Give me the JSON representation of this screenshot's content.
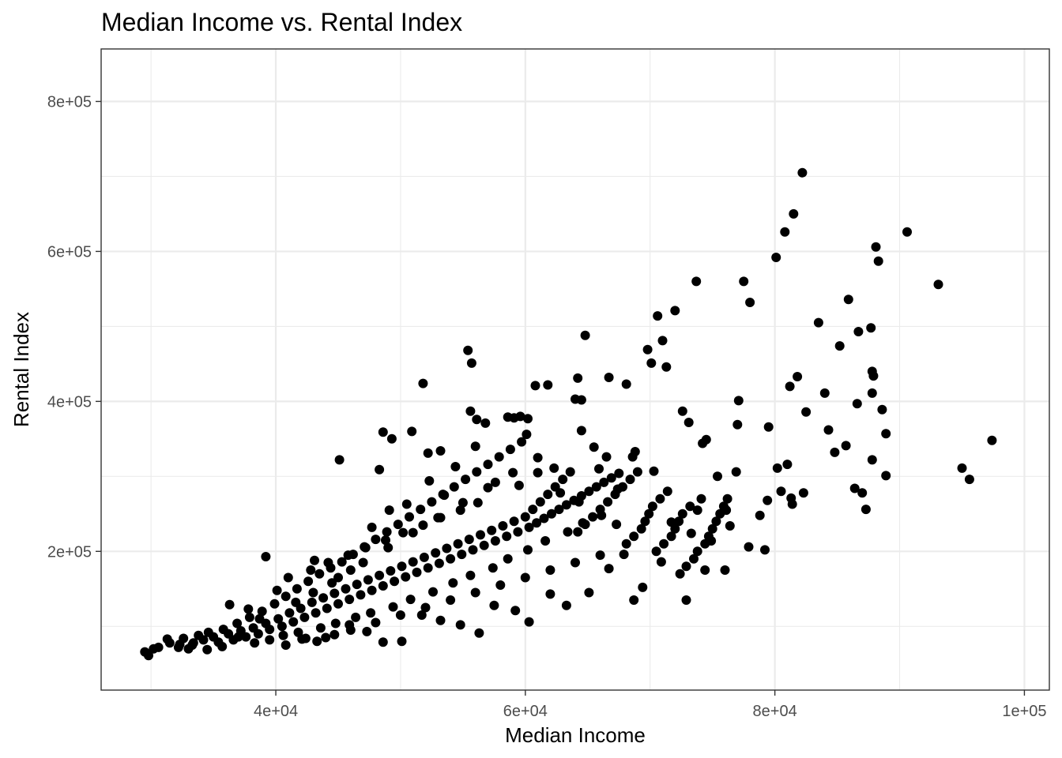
{
  "chart_data": {
    "type": "scatter",
    "title": "Median Income vs. Rental Index",
    "xlabel": "Median Income",
    "ylabel": "Rental Index",
    "xlim": [
      26000,
      102000
    ],
    "ylim": [
      15000,
      870000
    ],
    "x_ticks": [
      40000,
      60000,
      80000,
      100000
    ],
    "x_tick_labels": [
      "4e+04",
      "6e+04",
      "8e+04",
      "1e+05"
    ],
    "y_ticks": [
      200000,
      400000,
      600000,
      800000
    ],
    "y_tick_labels": [
      "2e+05",
      "4e+05",
      "6e+05",
      "8e+05"
    ],
    "grid": true,
    "legend": "none",
    "point_color": "#000000",
    "points": [
      [
        29500,
        66000
      ],
      [
        29800,
        61000
      ],
      [
        30200,
        70000
      ],
      [
        30600,
        72000
      ],
      [
        31500,
        78000
      ],
      [
        32300,
        76000
      ],
      [
        32600,
        84000
      ],
      [
        33000,
        70000
      ],
      [
        33400,
        78000
      ],
      [
        33800,
        88000
      ],
      [
        34200,
        82000
      ],
      [
        34600,
        92000
      ],
      [
        35000,
        86000
      ],
      [
        35400,
        79000
      ],
      [
        35800,
        96000
      ],
      [
        36200,
        90000
      ],
      [
        36600,
        82000
      ],
      [
        36900,
        104000
      ],
      [
        37200,
        94000
      ],
      [
        37600,
        86000
      ],
      [
        37900,
        112000
      ],
      [
        38200,
        98000
      ],
      [
        38600,
        90000
      ],
      [
        38900,
        120000
      ],
      [
        39200,
        104000
      ],
      [
        39500,
        96000
      ],
      [
        39900,
        130000
      ],
      [
        40200,
        110000
      ],
      [
        40500,
        100000
      ],
      [
        40800,
        140000
      ],
      [
        41100,
        118000
      ],
      [
        41400,
        106000
      ],
      [
        41700,
        150000
      ],
      [
        42000,
        124000
      ],
      [
        42300,
        112000
      ],
      [
        42600,
        160000
      ],
      [
        42900,
        132000
      ],
      [
        43200,
        118000
      ],
      [
        43500,
        170000
      ],
      [
        43800,
        138000
      ],
      [
        44100,
        124000
      ],
      [
        44400,
        178000
      ],
      [
        44700,
        144000
      ],
      [
        45000,
        130000
      ],
      [
        45300,
        186000
      ],
      [
        45600,
        150000
      ],
      [
        45900,
        136000
      ],
      [
        46200,
        196000
      ],
      [
        46500,
        156000
      ],
      [
        46800,
        142000
      ],
      [
        47100,
        206000
      ],
      [
        47400,
        162000
      ],
      [
        47700,
        148000
      ],
      [
        48000,
        216000
      ],
      [
        48300,
        168000
      ],
      [
        48600,
        154000
      ],
      [
        48900,
        226000
      ],
      [
        49200,
        174000
      ],
      [
        49500,
        160000
      ],
      [
        49800,
        236000
      ],
      [
        50100,
        180000
      ],
      [
        50400,
        166000
      ],
      [
        50700,
        246000
      ],
      [
        51000,
        186000
      ],
      [
        51300,
        172000
      ],
      [
        51600,
        256000
      ],
      [
        51900,
        192000
      ],
      [
        52200,
        178000
      ],
      [
        52500,
        266000
      ],
      [
        52800,
        198000
      ],
      [
        53100,
        184000
      ],
      [
        53400,
        276000
      ],
      [
        53700,
        204000
      ],
      [
        54000,
        190000
      ],
      [
        54300,
        286000
      ],
      [
        54600,
        210000
      ],
      [
        54900,
        196000
      ],
      [
        55200,
        296000
      ],
      [
        55500,
        216000
      ],
      [
        55800,
        202000
      ],
      [
        56100,
        306000
      ],
      [
        56400,
        222000
      ],
      [
        56700,
        208000
      ],
      [
        57000,
        316000
      ],
      [
        57300,
        228000
      ],
      [
        57600,
        214000
      ],
      [
        57900,
        326000
      ],
      [
        58200,
        234000
      ],
      [
        58500,
        220000
      ],
      [
        58800,
        336000
      ],
      [
        59100,
        240000
      ],
      [
        59400,
        226000
      ],
      [
        59700,
        346000
      ],
      [
        60000,
        246000
      ],
      [
        60300,
        232000
      ],
      [
        60600,
        256000
      ],
      [
        60900,
        238000
      ],
      [
        61200,
        266000
      ],
      [
        61500,
        244000
      ],
      [
        61800,
        276000
      ],
      [
        62100,
        250000
      ],
      [
        62400,
        286000
      ],
      [
        62700,
        256000
      ],
      [
        63000,
        296000
      ],
      [
        63300,
        262000
      ],
      [
        63600,
        306000
      ],
      [
        63900,
        268000
      ],
      [
        64200,
        226000
      ],
      [
        64500,
        274000
      ],
      [
        64800,
        236000
      ],
      [
        65100,
        280000
      ],
      [
        65400,
        246000
      ],
      [
        65700,
        286000
      ],
      [
        66000,
        256000
      ],
      [
        66300,
        292000
      ],
      [
        66600,
        266000
      ],
      [
        66900,
        298000
      ],
      [
        67200,
        276000
      ],
      [
        67500,
        304000
      ],
      [
        67800,
        286000
      ],
      [
        68100,
        210000
      ],
      [
        68400,
        296000
      ],
      [
        68700,
        220000
      ],
      [
        69000,
        306000
      ],
      [
        69300,
        230000
      ],
      [
        69600,
        240000
      ],
      [
        69900,
        250000
      ],
      [
        70200,
        260000
      ],
      [
        70500,
        200000
      ],
      [
        70800,
        270000
      ],
      [
        71100,
        210000
      ],
      [
        71400,
        280000
      ],
      [
        71700,
        220000
      ],
      [
        72000,
        230000
      ],
      [
        72300,
        240000
      ],
      [
        72600,
        250000
      ],
      [
        72900,
        180000
      ],
      [
        73200,
        260000
      ],
      [
        73500,
        190000
      ],
      [
        73800,
        200000
      ],
      [
        74100,
        270000
      ],
      [
        74400,
        210000
      ],
      [
        74700,
        220000
      ],
      [
        75000,
        230000
      ],
      [
        75300,
        240000
      ],
      [
        75600,
        250000
      ],
      [
        75900,
        260000
      ],
      [
        76200,
        270000
      ],
      [
        44000,
        85000
      ],
      [
        46000,
        95000
      ],
      [
        48000,
        105000
      ],
      [
        50000,
        115000
      ],
      [
        52000,
        125000
      ],
      [
        54000,
        135000
      ],
      [
        56000,
        145000
      ],
      [
        58000,
        155000
      ],
      [
        60000,
        165000
      ],
      [
        62000,
        175000
      ],
      [
        64000,
        185000
      ],
      [
        66000,
        195000
      ],
      [
        43000,
        145000
      ],
      [
        45000,
        165000
      ],
      [
        47000,
        185000
      ],
      [
        49000,
        205000
      ],
      [
        51000,
        225000
      ],
      [
        53000,
        245000
      ],
      [
        55000,
        265000
      ],
      [
        57000,
        285000
      ],
      [
        59000,
        305000
      ],
      [
        61000,
        325000
      ],
      [
        40600,
        88000
      ],
      [
        41800,
        92000
      ],
      [
        42400,
        84000
      ],
      [
        43600,
        98000
      ],
      [
        44800,
        104000
      ],
      [
        46400,
        112000
      ],
      [
        47600,
        118000
      ],
      [
        49400,
        126000
      ],
      [
        50800,
        136000
      ],
      [
        52600,
        146000
      ],
      [
        54200,
        158000
      ],
      [
        55600,
        168000
      ],
      [
        57400,
        178000
      ],
      [
        58600,
        190000
      ],
      [
        60200,
        202000
      ],
      [
        61600,
        214000
      ],
      [
        63400,
        226000
      ],
      [
        64600,
        238000
      ],
      [
        39200,
        193000
      ],
      [
        41000,
        165000
      ],
      [
        42800,
        175000
      ],
      [
        44200,
        185000
      ],
      [
        45800,
        195000
      ],
      [
        47200,
        205000
      ],
      [
        48800,
        215000
      ],
      [
        50200,
        225000
      ],
      [
        51800,
        235000
      ],
      [
        53200,
        245000
      ],
      [
        54800,
        255000
      ],
      [
        56200,
        265000
      ],
      [
        45100,
        322000
      ],
      [
        48300,
        309000
      ],
      [
        48600,
        359000
      ],
      [
        49300,
        350000
      ],
      [
        50900,
        360000
      ],
      [
        51800,
        424000
      ],
      [
        52200,
        331000
      ],
      [
        53200,
        334000
      ],
      [
        55400,
        468000
      ],
      [
        55700,
        451000
      ],
      [
        55600,
        387000
      ],
      [
        56100,
        376000
      ],
      [
        56800,
        371000
      ],
      [
        58600,
        379000
      ],
      [
        59100,
        378000
      ],
      [
        59600,
        380000
      ],
      [
        60200,
        377000
      ],
      [
        60100,
        356000
      ],
      [
        60800,
        421000
      ],
      [
        61800,
        422000
      ],
      [
        62300,
        311000
      ],
      [
        64000,
        403000
      ],
      [
        64200,
        431000
      ],
      [
        64500,
        402000
      ],
      [
        64500,
        361000
      ],
      [
        64800,
        488000
      ],
      [
        65500,
        339000
      ],
      [
        66500,
        326000
      ],
      [
        66700,
        432000
      ],
      [
        68100,
        423000
      ],
      [
        68800,
        333000
      ],
      [
        69800,
        469000
      ],
      [
        70100,
        451000
      ],
      [
        70600,
        514000
      ],
      [
        71000,
        481000
      ],
      [
        71300,
        446000
      ],
      [
        72000,
        521000
      ],
      [
        72600,
        387000
      ],
      [
        73100,
        372000
      ],
      [
        73700,
        560000
      ],
      [
        74200,
        344000
      ],
      [
        74500,
        349000
      ],
      [
        77500,
        560000
      ],
      [
        78000,
        532000
      ],
      [
        77100,
        401000
      ],
      [
        77000,
        369000
      ],
      [
        76900,
        306000
      ],
      [
        79500,
        366000
      ],
      [
        80100,
        592000
      ],
      [
        80800,
        626000
      ],
      [
        81500,
        650000
      ],
      [
        82200,
        705000
      ],
      [
        80200,
        311000
      ],
      [
        81000,
        316000
      ],
      [
        81400,
        263000
      ],
      [
        81200,
        420000
      ],
      [
        81800,
        433000
      ],
      [
        82500,
        386000
      ],
      [
        83500,
        505000
      ],
      [
        84000,
        411000
      ],
      [
        84300,
        362000
      ],
      [
        84800,
        332000
      ],
      [
        85200,
        474000
      ],
      [
        85700,
        341000
      ],
      [
        85900,
        536000
      ],
      [
        86400,
        284000
      ],
      [
        86600,
        397000
      ],
      [
        86700,
        493000
      ],
      [
        87000,
        278000
      ],
      [
        87300,
        256000
      ],
      [
        87700,
        498000
      ],
      [
        87800,
        440000
      ],
      [
        87900,
        434000
      ],
      [
        87800,
        411000
      ],
      [
        87800,
        322000
      ],
      [
        88100,
        606000
      ],
      [
        88300,
        587000
      ],
      [
        88600,
        389000
      ],
      [
        88900,
        357000
      ],
      [
        88900,
        301000
      ],
      [
        90600,
        626000
      ],
      [
        93100,
        556000
      ],
      [
        95000,
        311000
      ],
      [
        95600,
        296000
      ],
      [
        97400,
        348000
      ],
      [
        72900,
        135000
      ],
      [
        74400,
        175000
      ],
      [
        76000,
        175000
      ],
      [
        79200,
        202000
      ],
      [
        77900,
        206000
      ],
      [
        79400,
        268000
      ],
      [
        80500,
        280000
      ],
      [
        81300,
        271000
      ],
      [
        82300,
        278000
      ],
      [
        78800,
        248000
      ],
      [
        76400,
        234000
      ],
      [
        73800,
        255000
      ],
      [
        75400,
        300000
      ],
      [
        72400,
        170000
      ],
      [
        70900,
        186000
      ],
      [
        69400,
        152000
      ],
      [
        68700,
        135000
      ],
      [
        67900,
        196000
      ],
      [
        66700,
        177000
      ],
      [
        65100,
        145000
      ],
      [
        63300,
        128000
      ],
      [
        62000,
        143000
      ],
      [
        60300,
        106000
      ],
      [
        59200,
        121000
      ],
      [
        57500,
        128000
      ],
      [
        56300,
        91000
      ],
      [
        54800,
        102000
      ],
      [
        53200,
        108000
      ],
      [
        51700,
        115000
      ],
      [
        50100,
        80000
      ],
      [
        48600,
        79000
      ],
      [
        47300,
        93000
      ],
      [
        45900,
        102000
      ],
      [
        44700,
        89000
      ],
      [
        43300,
        80000
      ],
      [
        42100,
        83000
      ],
      [
        40800,
        75000
      ],
      [
        39500,
        82000
      ],
      [
        38300,
        78000
      ],
      [
        37000,
        86000
      ],
      [
        35700,
        73000
      ],
      [
        34500,
        69000
      ],
      [
        33300,
        75000
      ],
      [
        32200,
        72000
      ],
      [
        31300,
        83000
      ],
      [
        36300,
        129000
      ],
      [
        37800,
        123000
      ],
      [
        38700,
        110000
      ],
      [
        40100,
        148000
      ],
      [
        41600,
        132000
      ],
      [
        43100,
        188000
      ],
      [
        44500,
        158000
      ],
      [
        46000,
        175000
      ],
      [
        47700,
        232000
      ],
      [
        49100,
        255000
      ],
      [
        50500,
        263000
      ],
      [
        52300,
        294000
      ],
      [
        53500,
        275000
      ],
      [
        54400,
        313000
      ],
      [
        56000,
        340000
      ],
      [
        57600,
        292000
      ],
      [
        59500,
        288000
      ],
      [
        61000,
        305000
      ],
      [
        62800,
        278000
      ],
      [
        64300,
        266000
      ],
      [
        65900,
        310000
      ],
      [
        67400,
        283000
      ],
      [
        68600,
        326000
      ],
      [
        70300,
        307000
      ],
      [
        71700,
        239000
      ],
      [
        73300,
        224000
      ],
      [
        74900,
        214000
      ],
      [
        76100,
        255000
      ],
      [
        66100,
        248000
      ],
      [
        67300,
        236000
      ]
    ]
  }
}
